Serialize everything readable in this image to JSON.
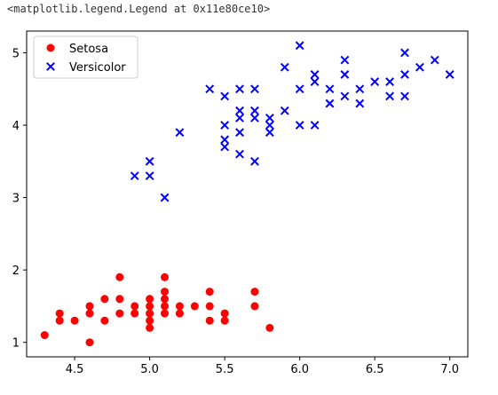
{
  "output": {
    "repr_text": "<matplotlib.legend.Legend at 0x11e80ce10>"
  },
  "chart_data": {
    "type": "scatter",
    "title": "",
    "xlabel": "",
    "ylabel": "",
    "xlim": [
      4.18,
      7.12
    ],
    "ylim": [
      0.8,
      5.3
    ],
    "x_ticks": [
      "4.5",
      "5.0",
      "5.5",
      "6.0",
      "6.5",
      "7.0"
    ],
    "y_ticks": [
      "1",
      "2",
      "3",
      "4",
      "5"
    ],
    "grid": false,
    "legend_position": "top-left",
    "series": [
      {
        "name": "Setosa",
        "marker": "circle",
        "color": "#ff0000",
        "points": [
          [
            4.3,
            1.1
          ],
          [
            4.4,
            1.3
          ],
          [
            4.4,
            1.4
          ],
          [
            4.5,
            1.3
          ],
          [
            4.6,
            1.0
          ],
          [
            4.6,
            1.4
          ],
          [
            4.6,
            1.5
          ],
          [
            4.7,
            1.3
          ],
          [
            4.7,
            1.6
          ],
          [
            4.8,
            1.4
          ],
          [
            4.8,
            1.6
          ],
          [
            4.8,
            1.9
          ],
          [
            4.9,
            1.4
          ],
          [
            4.9,
            1.5
          ],
          [
            5.0,
            1.2
          ],
          [
            5.0,
            1.3
          ],
          [
            5.0,
            1.4
          ],
          [
            5.0,
            1.5
          ],
          [
            5.0,
            1.6
          ],
          [
            5.1,
            1.4
          ],
          [
            5.1,
            1.5
          ],
          [
            5.1,
            1.6
          ],
          [
            5.1,
            1.7
          ],
          [
            5.1,
            1.9
          ],
          [
            5.2,
            1.4
          ],
          [
            5.2,
            1.5
          ],
          [
            5.3,
            1.5
          ],
          [
            5.4,
            1.3
          ],
          [
            5.4,
            1.5
          ],
          [
            5.4,
            1.7
          ],
          [
            5.5,
            1.3
          ],
          [
            5.5,
            1.4
          ],
          [
            5.7,
            1.5
          ],
          [
            5.7,
            1.7
          ],
          [
            5.8,
            1.2
          ]
        ]
      },
      {
        "name": "Versicolor",
        "marker": "x",
        "color": "#0000ff",
        "points": [
          [
            4.9,
            3.3
          ],
          [
            5.0,
            3.3
          ],
          [
            5.0,
            3.5
          ],
          [
            5.1,
            3.0
          ],
          [
            5.2,
            3.9
          ],
          [
            5.4,
            4.5
          ],
          [
            5.5,
            3.7
          ],
          [
            5.5,
            3.8
          ],
          [
            5.5,
            4.0
          ],
          [
            5.5,
            4.4
          ],
          [
            5.6,
            3.6
          ],
          [
            5.6,
            3.9
          ],
          [
            5.6,
            4.1
          ],
          [
            5.6,
            4.2
          ],
          [
            5.6,
            4.5
          ],
          [
            5.7,
            3.5
          ],
          [
            5.7,
            4.1
          ],
          [
            5.7,
            4.2
          ],
          [
            5.7,
            4.5
          ],
          [
            5.8,
            3.9
          ],
          [
            5.8,
            4.0
          ],
          [
            5.8,
            4.1
          ],
          [
            5.9,
            4.2
          ],
          [
            5.9,
            4.8
          ],
          [
            6.0,
            4.0
          ],
          [
            6.0,
            4.5
          ],
          [
            6.0,
            5.1
          ],
          [
            6.1,
            4.0
          ],
          [
            6.1,
            4.6
          ],
          [
            6.1,
            4.7
          ],
          [
            6.2,
            4.3
          ],
          [
            6.2,
            4.5
          ],
          [
            6.3,
            4.4
          ],
          [
            6.3,
            4.7
          ],
          [
            6.3,
            4.9
          ],
          [
            6.4,
            4.3
          ],
          [
            6.4,
            4.5
          ],
          [
            6.5,
            4.6
          ],
          [
            6.6,
            4.4
          ],
          [
            6.6,
            4.6
          ],
          [
            6.7,
            4.4
          ],
          [
            6.7,
            4.7
          ],
          [
            6.7,
            5.0
          ],
          [
            6.8,
            4.8
          ],
          [
            6.9,
            4.9
          ],
          [
            7.0,
            4.7
          ]
        ]
      }
    ]
  }
}
